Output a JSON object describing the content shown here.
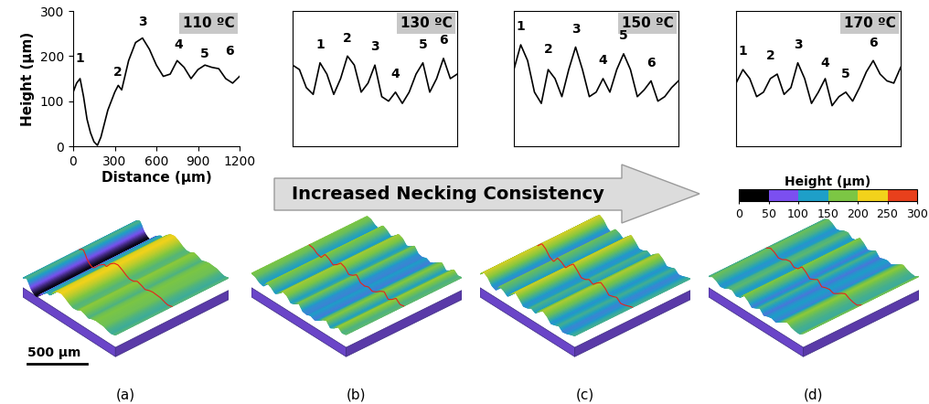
{
  "chart_data": [
    {
      "type": "line",
      "title": "110 ºC",
      "x_label": "Distance (µm)",
      "y_label": "Height (µm)",
      "x": [
        0,
        25,
        50,
        75,
        100,
        125,
        150,
        175,
        200,
        250,
        300,
        325,
        350,
        400,
        450,
        500,
        550,
        600,
        650,
        700,
        750,
        800,
        850,
        900,
        950,
        1000,
        1050,
        1100,
        1150,
        1200
      ],
      "values": [
        120,
        140,
        150,
        110,
        60,
        30,
        10,
        2,
        20,
        80,
        120,
        135,
        125,
        190,
        230,
        240,
        215,
        180,
        155,
        160,
        190,
        175,
        150,
        170,
        180,
        175,
        172,
        150,
        140,
        155
      ],
      "color": "#000000",
      "line_style": "solid",
      "xlim": [
        0,
        1200
      ],
      "ylim": [
        0,
        300
      ],
      "xticks": [
        0,
        300,
        600,
        900,
        1200
      ],
      "yticks": [
        0,
        100,
        200,
        300
      ],
      "annotations": [
        {
          "text": "1",
          "x": 50,
          "y": 195
        },
        {
          "text": "2",
          "x": 320,
          "y": 165
        },
        {
          "text": "3",
          "x": 500,
          "y": 275
        },
        {
          "text": "4",
          "x": 760,
          "y": 225
        },
        {
          "text": "5",
          "x": 950,
          "y": 205
        },
        {
          "text": "6",
          "x": 1130,
          "y": 210
        }
      ]
    },
    {
      "type": "line",
      "title": "130 ºC",
      "x": [
        0,
        50,
        100,
        150,
        200,
        250,
        300,
        350,
        400,
        450,
        500,
        550,
        600,
        650,
        700,
        750,
        800,
        850,
        900,
        950,
        1000,
        1050,
        1100,
        1150,
        1200
      ],
      "values": [
        180,
        170,
        130,
        115,
        185,
        160,
        115,
        150,
        200,
        180,
        120,
        140,
        180,
        110,
        100,
        120,
        95,
        120,
        160,
        185,
        120,
        150,
        195,
        150,
        160
      ],
      "color": "#000000",
      "line_style": "solid",
      "tick_labels": false,
      "xlim": [
        0,
        1200
      ],
      "ylim": [
        0,
        300
      ],
      "annotations": [
        {
          "text": "1",
          "x": 200,
          "y": 225
        },
        {
          "text": "2",
          "x": 400,
          "y": 240
        },
        {
          "text": "3",
          "x": 600,
          "y": 220
        },
        {
          "text": "4",
          "x": 750,
          "y": 160
        },
        {
          "text": "5",
          "x": 950,
          "y": 225
        },
        {
          "text": "6",
          "x": 1100,
          "y": 235
        }
      ]
    },
    {
      "type": "line",
      "title": "150 ºC",
      "x": [
        0,
        50,
        100,
        150,
        200,
        250,
        300,
        350,
        400,
        450,
        500,
        550,
        600,
        650,
        700,
        750,
        800,
        850,
        900,
        950,
        1000,
        1050,
        1100,
        1150,
        1200
      ],
      "values": [
        170,
        225,
        190,
        120,
        95,
        170,
        150,
        110,
        170,
        220,
        170,
        110,
        120,
        150,
        120,
        170,
        205,
        170,
        110,
        125,
        145,
        100,
        110,
        130,
        145
      ],
      "color": "#000000",
      "line_style": "solid",
      "tick_labels": false,
      "xlim": [
        0,
        1200
      ],
      "ylim": [
        0,
        300
      ],
      "annotations": [
        {
          "text": "1",
          "x": 50,
          "y": 265
        },
        {
          "text": "2",
          "x": 250,
          "y": 215
        },
        {
          "text": "3",
          "x": 450,
          "y": 260
        },
        {
          "text": "4",
          "x": 650,
          "y": 190
        },
        {
          "text": "5",
          "x": 800,
          "y": 245
        },
        {
          "text": "6",
          "x": 1000,
          "y": 185
        }
      ]
    },
    {
      "type": "line",
      "title": "170 ºC",
      "x": [
        0,
        50,
        100,
        150,
        200,
        250,
        300,
        350,
        400,
        450,
        500,
        550,
        600,
        650,
        700,
        750,
        800,
        850,
        900,
        950,
        1000,
        1050,
        1100,
        1150,
        1200
      ],
      "values": [
        140,
        170,
        150,
        110,
        120,
        150,
        160,
        115,
        130,
        185,
        150,
        95,
        120,
        150,
        90,
        110,
        120,
        100,
        130,
        165,
        190,
        160,
        145,
        140,
        175
      ],
      "color": "#000000",
      "line_style": "solid",
      "tick_labels": false,
      "xlim": [
        0,
        1200
      ],
      "ylim": [
        0,
        300
      ],
      "annotations": [
        {
          "text": "1",
          "x": 50,
          "y": 210
        },
        {
          "text": "2",
          "x": 250,
          "y": 200
        },
        {
          "text": "3",
          "x": 450,
          "y": 225
        },
        {
          "text": "4",
          "x": 650,
          "y": 185
        },
        {
          "text": "5",
          "x": 800,
          "y": 160
        },
        {
          "text": "6",
          "x": 1000,
          "y": 230
        }
      ]
    }
  ],
  "arrow_text": "Increased Necking Consistency",
  "colorbar": {
    "label": "Height (µm)",
    "bounds": [
      0,
      50,
      100,
      150,
      200,
      250,
      300
    ],
    "colors": [
      "#000000",
      "#7b4ff0",
      "#1e9fc8",
      "#7cc644",
      "#f2d21b",
      "#e8401c"
    ],
    "ticks": [
      0,
      50,
      100,
      150,
      200,
      250,
      300
    ]
  },
  "panel_labels": [
    "(a)",
    "(b)",
    "(c)",
    "(d)"
  ],
  "scale_bar": "500 µm"
}
